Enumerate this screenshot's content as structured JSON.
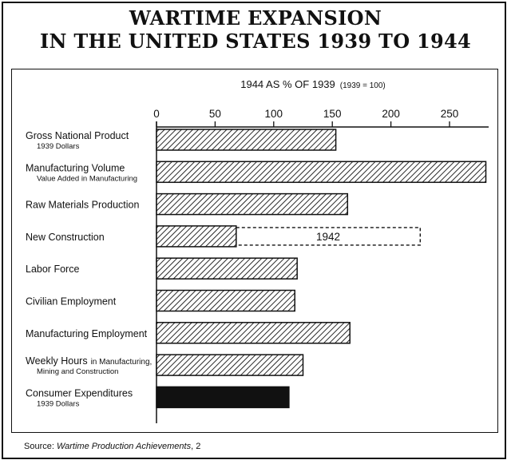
{
  "title_line1": "WARTIME EXPANSION",
  "title_line2": "IN THE UNITED STATES 1939 TO 1944",
  "source_prefix": "Source: ",
  "source_title": "Wartime Production Achievements",
  "source_suffix": ", 2",
  "chart_data": {
    "type": "bar",
    "orientation": "horizontal",
    "axis_title": "1944 AS % OF 1939",
    "axis_note": "(1939 = 100)",
    "xlim": [
      0,
      280
    ],
    "ticks": [
      0,
      50,
      100,
      150,
      200,
      250
    ],
    "categories": [
      {
        "label": "Gross National Product",
        "sublabel": "1939 Dollars",
        "value": 153,
        "fill": "hatch"
      },
      {
        "label": "Manufacturing Volume",
        "sublabel": "Value Added in Manufacturing",
        "value": 281,
        "fill": "hatch"
      },
      {
        "label": "Raw Materials Production",
        "sublabel": "",
        "value": 163,
        "fill": "hatch"
      },
      {
        "label": "New Construction",
        "sublabel": "",
        "value": 68,
        "fill": "hatch",
        "dashed_value": 225,
        "dashed_label": "1942"
      },
      {
        "label": "Labor Force",
        "sublabel": "",
        "value": 120,
        "fill": "hatch"
      },
      {
        "label": "Civilian Employment",
        "sublabel": "",
        "value": 118,
        "fill": "hatch"
      },
      {
        "label": "Manufacturing Employment",
        "sublabel": "",
        "value": 165,
        "fill": "hatch"
      },
      {
        "label": "Weekly Hours",
        "label_suffix": "in Manufacturing,",
        "sublabel": "Mining and Construction",
        "value": 125,
        "fill": "hatch"
      },
      {
        "label": "Consumer Expenditures",
        "sublabel": "1939 Dollars",
        "value": 113,
        "fill": "solid"
      }
    ],
    "colors": {
      "ink": "#111111",
      "background": "#ffffff"
    }
  }
}
